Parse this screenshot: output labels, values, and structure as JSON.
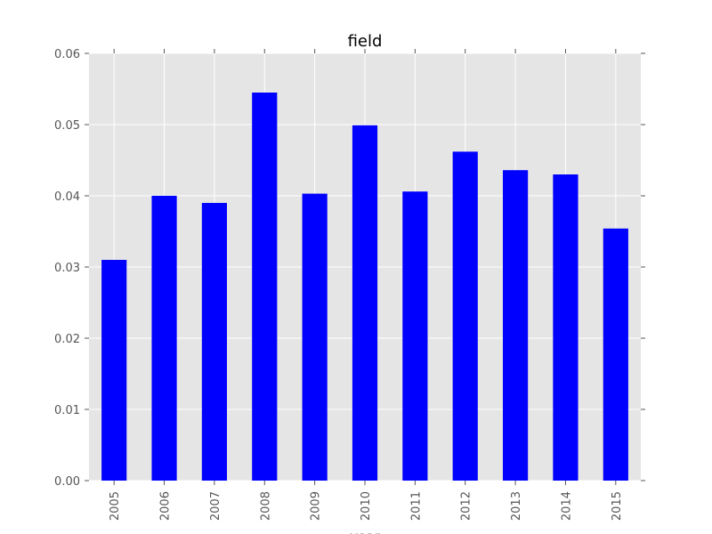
{
  "chart_data": {
    "type": "bar",
    "title": "field",
    "xlabel": "year",
    "ylabel": "",
    "categories": [
      "2005",
      "2006",
      "2007",
      "2008",
      "2009",
      "2010",
      "2011",
      "2012",
      "2013",
      "2014",
      "2015"
    ],
    "values": [
      0.031,
      0.04,
      0.039,
      0.0545,
      0.0403,
      0.0499,
      0.0406,
      0.0462,
      0.0436,
      0.043,
      0.0354
    ],
    "ylim": [
      0,
      0.06
    ],
    "yticks": [
      "0.00",
      "0.01",
      "0.02",
      "0.03",
      "0.04",
      "0.05",
      "0.06"
    ],
    "grid": true,
    "legend": "none",
    "colors": {
      "bar": "#0000ff",
      "plot_background": "#e5e5e5",
      "grid": "#ffffff",
      "tick_text": "#555555"
    }
  }
}
